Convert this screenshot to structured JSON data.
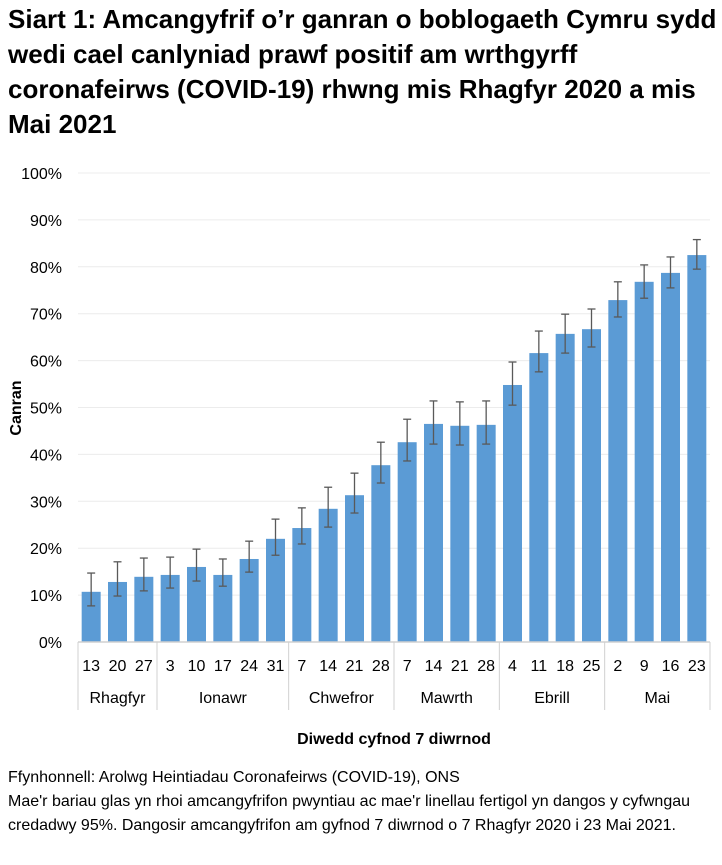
{
  "title": "Siart 1: Amcangyfrif o’r ganran o boblogaeth Cymru sydd wedi cael canlyniad prawf positif am wrthgyrff coronafeirws (COVID-19) rhwng mis Rhagfyr 2020 a mis Mai 2021",
  "footer": {
    "source": "Ffynhonnell: Arolwg Heintiadau Coronafeirws (COVID-19), ONS",
    "note": "Mae'r bariau glas yn rhoi amcangyfrifon pwyntiau ac mae'r linellau fertigol yn dangos y cyfwngau credadwy 95%. Dangosir amcangyfrifon am gyfnod 7 diwrnod o 7 Rhagfyr 2020 i 23 Mai 2021."
  },
  "chart_data": {
    "type": "bar",
    "xlabel": "Diwedd cyfnod 7 diwrnod",
    "ylabel": "Canran",
    "ylim": [
      0,
      100
    ],
    "yticks": [
      "0%",
      "10%",
      "20%",
      "30%",
      "40%",
      "50%",
      "60%",
      "70%",
      "80%",
      "90%",
      "100%"
    ],
    "grid": true,
    "bar_color": "#5b9bd5",
    "error_color": "#595959",
    "months": [
      {
        "label": "Rhagfyr",
        "days": [
          "13",
          "20",
          "27"
        ]
      },
      {
        "label": "Ionawr",
        "days": [
          "3",
          "10",
          "17",
          "24",
          "31"
        ]
      },
      {
        "label": "Chwefror",
        "days": [
          "7",
          "14",
          "21",
          "28"
        ]
      },
      {
        "label": "Mawrth",
        "days": [
          "7",
          "14",
          "21",
          "28"
        ]
      },
      {
        "label": "Ebrill",
        "days": [
          "4",
          "11",
          "18",
          "25"
        ]
      },
      {
        "label": "Mai",
        "days": [
          "2",
          "9",
          "16",
          "23"
        ]
      }
    ],
    "values": [
      10.7,
      12.8,
      13.9,
      14.3,
      16.0,
      14.3,
      17.7,
      22.0,
      24.3,
      28.4,
      31.3,
      37.7,
      42.6,
      46.5,
      46.1,
      46.3,
      54.8,
      61.6,
      65.7,
      66.7,
      72.9,
      76.8,
      78.7,
      82.5
    ],
    "lower": [
      7.7,
      9.8,
      10.9,
      11.5,
      13.0,
      11.9,
      14.9,
      18.5,
      20.9,
      24.5,
      27.5,
      33.9,
      38.6,
      42.2,
      42.0,
      42.2,
      50.5,
      57.6,
      61.6,
      62.9,
      69.3,
      73.3,
      75.5,
      79.5
    ],
    "upper": [
      14.7,
      17.1,
      17.9,
      18.1,
      19.8,
      17.7,
      21.5,
      26.2,
      28.6,
      33.0,
      36.0,
      42.6,
      47.5,
      51.4,
      51.2,
      51.4,
      59.7,
      66.3,
      69.9,
      71.0,
      76.8,
      80.4,
      82.1,
      85.8
    ]
  }
}
